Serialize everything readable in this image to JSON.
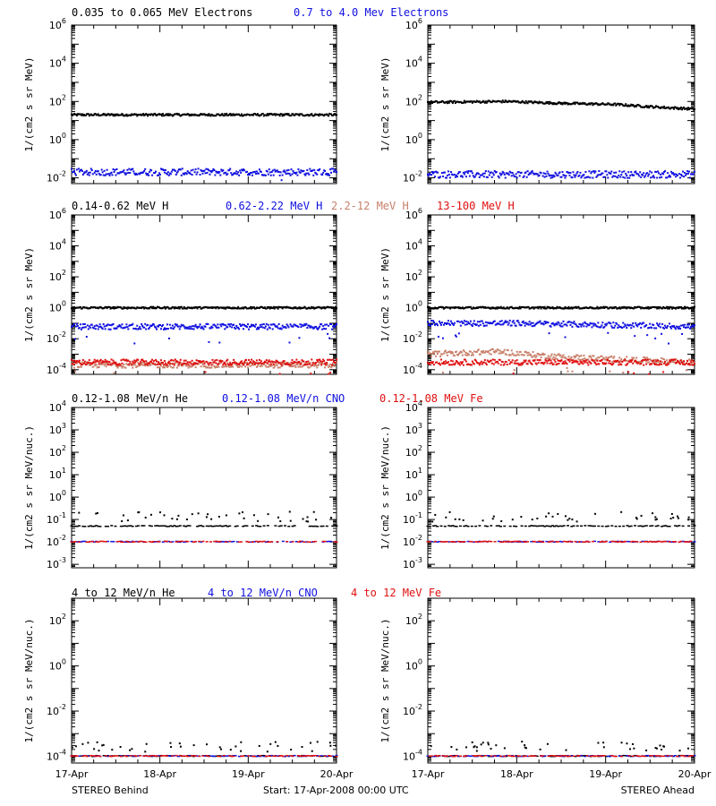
{
  "colors": {
    "black": "#000000",
    "blue": "#1010e0",
    "tan": "#c8806a",
    "red": "#e01010"
  },
  "chart_data": [
    {
      "type": "scatter",
      "panel": "electrons-behind",
      "scale": "log",
      "ylim": [
        0.005,
        1000000
      ],
      "ylabel": "1/(cm2 s sr MeV)",
      "yticks": [
        {
          "exp": "-2"
        },
        {
          "exp": "0"
        },
        {
          "exp": "2"
        },
        {
          "exp": "4"
        },
        {
          "exp": "6"
        }
      ],
      "series": [
        {
          "name": "0.035 to 0.065 MeV Electrons",
          "color": "#000000",
          "level": [
            [
              0,
              20
            ],
            [
              1,
              20
            ],
            [
              2,
              20
            ],
            [
              3,
              20
            ]
          ]
        },
        {
          "name": "0.7 to 4.0 Mev Electrons",
          "color": "#1010e0",
          "level": [
            [
              0,
              0.02
            ],
            [
              3,
              0.02
            ]
          ]
        }
      ]
    },
    {
      "type": "scatter",
      "panel": "electrons-ahead",
      "scale": "log",
      "ylim": [
        0.005,
        1000000
      ],
      "ylabel": "1/(cm2 s sr MeV)",
      "yticks": [
        {
          "exp": "-2"
        },
        {
          "exp": "0"
        },
        {
          "exp": "2"
        },
        {
          "exp": "4"
        },
        {
          "exp": "6"
        }
      ],
      "series": [
        {
          "name": "0.035 to 0.065 MeV Electrons",
          "color": "#000000",
          "level": [
            [
              0,
              90
            ],
            [
              0.9,
              100
            ],
            [
              1.5,
              80
            ],
            [
              2.1,
              70
            ],
            [
              2.6,
              50
            ],
            [
              3,
              40
            ]
          ]
        },
        {
          "name": "0.7 to 4.0 Mev Electrons",
          "color": "#1010e0",
          "level": [
            [
              0,
              0.015
            ],
            [
              3,
              0.015
            ]
          ]
        }
      ]
    },
    {
      "type": "scatter",
      "panel": "protons-behind",
      "scale": "log",
      "ylim": [
        5e-05,
        1000000
      ],
      "ylabel": "1/(cm2 s sr MeV)",
      "yticks": [
        {
          "exp": "-4"
        },
        {
          "exp": "-2"
        },
        {
          "exp": "0"
        },
        {
          "exp": "2"
        },
        {
          "exp": "4"
        },
        {
          "exp": "6"
        }
      ],
      "series": [
        {
          "name": "0.14-0.62 MeV H",
          "color": "#000000",
          "level": [
            [
              0,
              1
            ],
            [
              3,
              1
            ]
          ]
        },
        {
          "name": "0.62-2.22 MeV H",
          "color": "#1010e0",
          "level": [
            [
              0,
              0.06
            ],
            [
              3,
              0.06
            ]
          ]
        },
        {
          "name": "2.2-12 MeV H",
          "color": "#c8806a",
          "level": [
            [
              0,
              0.0002
            ],
            [
              3,
              0.0002
            ]
          ]
        },
        {
          "name": "13-100 MeV H",
          "color": "#e01010",
          "level": [
            [
              0,
              0.0003
            ],
            [
              3,
              0.0003
            ]
          ]
        }
      ]
    },
    {
      "type": "scatter",
      "panel": "protons-ahead",
      "scale": "log",
      "ylim": [
        5e-05,
        1000000
      ],
      "ylabel": "1/(cm2 s sr MeV)",
      "yticks": [
        {
          "exp": "-4"
        },
        {
          "exp": "-2"
        },
        {
          "exp": "0"
        },
        {
          "exp": "2"
        },
        {
          "exp": "4"
        },
        {
          "exp": "6"
        }
      ],
      "series": [
        {
          "name": "0.14-0.62 MeV H",
          "color": "#000000",
          "level": [
            [
              0,
              1
            ],
            [
              3,
              1
            ]
          ]
        },
        {
          "name": "0.62-2.22 MeV H",
          "color": "#1010e0",
          "level": [
            [
              0,
              0.1
            ],
            [
              1,
              0.1
            ],
            [
              3,
              0.06
            ]
          ]
        },
        {
          "name": "2.2-12 MeV H",
          "color": "#c8806a",
          "level": [
            [
              0,
              0.001
            ],
            [
              0.8,
              0.0015
            ],
            [
              1.3,
              0.0008
            ],
            [
              2,
              0.0005
            ],
            [
              2.5,
              0.0004
            ],
            [
              3,
              0.0003
            ]
          ]
        },
        {
          "name": "13-100 MeV H",
          "color": "#e01010",
          "level": [
            [
              0,
              0.0003
            ],
            [
              3,
              0.0003
            ]
          ]
        }
      ]
    },
    {
      "type": "scatter",
      "panel": "heavy-low-behind",
      "scale": "log",
      "ylim": [
        0.0007,
        10000
      ],
      "ylabel": "1/(cm2 s sr MeV/nuc.)",
      "yticks": [
        {
          "exp": "-3"
        },
        {
          "exp": "-2"
        },
        {
          "exp": "-1"
        },
        {
          "exp": "0"
        },
        {
          "exp": "1"
        },
        {
          "exp": "2"
        },
        {
          "exp": "3"
        },
        {
          "exp": "4"
        }
      ],
      "series": [
        {
          "name": "0.12-1.08 MeV/n He",
          "color": "#000000",
          "level": [
            [
              0,
              0.05
            ],
            [
              3,
              0.05
            ]
          ]
        },
        {
          "name": "0.12-1.08 MeV/n CNO",
          "color": "#1010e0",
          "level": [
            [
              0,
              0.01
            ],
            [
              3,
              0.01
            ]
          ]
        },
        {
          "name": "0.12-1.08 MeV Fe",
          "color": "#e01010",
          "level": [
            [
              0,
              0.01
            ],
            [
              3,
              0.01
            ]
          ]
        }
      ]
    },
    {
      "type": "scatter",
      "panel": "heavy-low-ahead",
      "scale": "log",
      "ylim": [
        0.0007,
        10000
      ],
      "ylabel": "1/(cm2 s sr MeV/nuc.)",
      "yticks": [
        {
          "exp": "-3"
        },
        {
          "exp": "-2"
        },
        {
          "exp": "-1"
        },
        {
          "exp": "0"
        },
        {
          "exp": "1"
        },
        {
          "exp": "2"
        },
        {
          "exp": "3"
        },
        {
          "exp": "4"
        }
      ],
      "series": [
        {
          "name": "0.12-1.08 MeV/n He",
          "color": "#000000",
          "level": [
            [
              0,
              0.05
            ],
            [
              3,
              0.05
            ]
          ]
        },
        {
          "name": "0.12-1.08 MeV/n CNO",
          "color": "#1010e0",
          "level": [
            [
              0,
              0.01
            ],
            [
              3,
              0.01
            ]
          ]
        },
        {
          "name": "0.12-1.08 MeV Fe",
          "color": "#e01010",
          "level": [
            [
              0,
              0.01
            ],
            [
              3,
              0.01
            ]
          ]
        }
      ]
    },
    {
      "type": "scatter",
      "panel": "heavy-high-behind",
      "scale": "log",
      "ylim": [
        5e-05,
        1000
      ],
      "ylabel": "1/(cm2 s sr MeV/nuc.)",
      "yticks": [
        {
          "exp": "-4"
        },
        {
          "exp": "-2"
        },
        {
          "exp": "0"
        },
        {
          "exp": "2"
        }
      ],
      "series": [
        {
          "name": "4 to 12 MeV/n He",
          "color": "#000000",
          "level": [
            [
              0,
              0.0001
            ],
            [
              3,
              0.0001
            ]
          ]
        },
        {
          "name": "4 to 12 MeV/n CNO",
          "color": "#1010e0",
          "level": [
            [
              0,
              0.0001
            ],
            [
              3,
              0.0001
            ]
          ]
        },
        {
          "name": "4 to 12 MeV Fe",
          "color": "#e01010",
          "level": [
            [
              0,
              0.0001
            ],
            [
              3,
              0.0001
            ]
          ]
        }
      ]
    },
    {
      "type": "scatter",
      "panel": "heavy-high-ahead",
      "scale": "log",
      "ylim": [
        5e-05,
        1000
      ],
      "ylabel": "1/(cm2 s sr MeV/nuc.)",
      "yticks": [
        {
          "exp": "-4"
        },
        {
          "exp": "-2"
        },
        {
          "exp": "0"
        },
        {
          "exp": "2"
        }
      ],
      "series": [
        {
          "name": "4 to 12 MeV/n He",
          "color": "#000000",
          "level": [
            [
              0,
              0.0001
            ],
            [
              3,
              0.0001
            ]
          ]
        },
        {
          "name": "4 to 12 MeV/n CNO",
          "color": "#1010e0",
          "level": [
            [
              0,
              0.0001
            ],
            [
              3,
              0.0001
            ]
          ]
        },
        {
          "name": "4 to 12 MeV Fe",
          "color": "#e01010",
          "level": [
            [
              0,
              0.0001
            ],
            [
              3,
              0.0001
            ]
          ]
        }
      ]
    }
  ],
  "legends": [
    [
      "0.035 to 0.065 MeV Electrons",
      "0.7 to 4.0 Mev Electrons"
    ],
    [
      "0.14-0.62 MeV H",
      "0.62-2.22 MeV H",
      "2.2-12 MeV H",
      "13-100 MeV H"
    ],
    [
      "0.12-1.08 MeV/n He",
      "0.12-1.08 MeV/n CNO",
      "0.12-1.08 MeV Fe"
    ],
    [
      "4 to 12 MeV/n He",
      "4 to 12 MeV/n CNO",
      "4 to 12 MeV Fe"
    ]
  ],
  "x_ticks": [
    "17-Apr",
    "18-Apr",
    "19-Apr",
    "20-Apr"
  ],
  "footer": {
    "left": "STEREO Behind",
    "center": "Start: 17-Apr-2008 00:00 UTC",
    "right": "STEREO Ahead"
  }
}
